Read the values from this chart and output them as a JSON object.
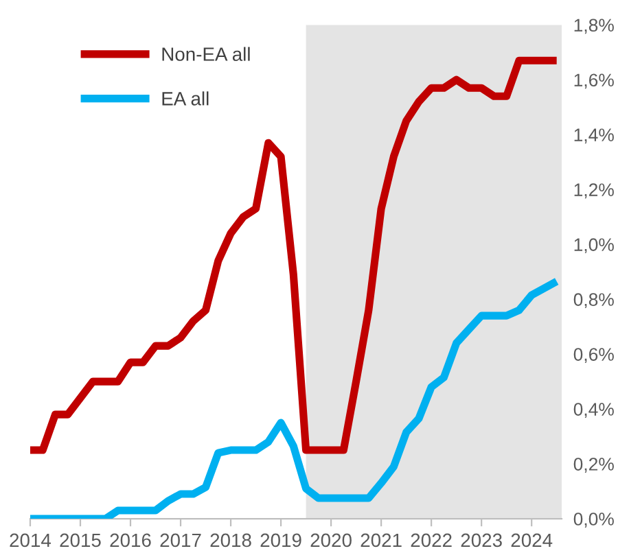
{
  "chart_data": {
    "type": "line",
    "x": [
      2014.0,
      2014.25,
      2014.5,
      2014.75,
      2015.0,
      2015.25,
      2015.5,
      2015.75,
      2016.0,
      2016.25,
      2016.5,
      2016.75,
      2017.0,
      2017.25,
      2017.5,
      2017.75,
      2018.0,
      2018.25,
      2018.5,
      2018.75,
      2019.0,
      2019.25,
      2019.5,
      2019.75,
      2020.0,
      2020.25,
      2020.5,
      2020.75,
      2021.0,
      2021.25,
      2021.5,
      2021.75,
      2022.0,
      2022.25,
      2022.5,
      2022.75,
      2023.0,
      2023.25,
      2023.5,
      2023.75,
      2024.0,
      2024.25,
      2024.5
    ],
    "series": [
      {
        "name": "Non-EA all",
        "color": "#c00000",
        "values": [
          0.25,
          0.25,
          0.38,
          0.38,
          0.44,
          0.5,
          0.5,
          0.5,
          0.57,
          0.57,
          0.63,
          0.63,
          0.66,
          0.72,
          0.76,
          0.94,
          1.04,
          1.1,
          1.13,
          1.37,
          1.32,
          0.89,
          0.25,
          0.25,
          0.25,
          0.25,
          0.5,
          0.76,
          1.13,
          1.32,
          1.45,
          1.52,
          1.57,
          1.57,
          1.6,
          1.57,
          1.57,
          1.54,
          1.54,
          1.67,
          1.67,
          1.67,
          1.67
        ]
      },
      {
        "name": "EA all",
        "color": "#00b0f0",
        "values": [
          0.0,
          0.0,
          0.0,
          0.0,
          0.0,
          0.0,
          0.0,
          0.03,
          0.03,
          0.03,
          0.03,
          0.065,
          0.09,
          0.09,
          0.115,
          0.24,
          0.25,
          0.25,
          0.25,
          0.28,
          0.35,
          0.265,
          0.11,
          0.075,
          0.075,
          0.075,
          0.075,
          0.075,
          0.13,
          0.19,
          0.315,
          0.365,
          0.48,
          0.515,
          0.64,
          0.69,
          0.74,
          0.74,
          0.74,
          0.76,
          0.815,
          0.84,
          0.865
        ]
      }
    ],
    "xlim": [
      2014,
      2024.6
    ],
    "xticks": [
      2014,
      2015,
      2016,
      2017,
      2018,
      2019,
      2020,
      2021,
      2022,
      2023,
      2024
    ],
    "ylim": [
      0,
      1.8
    ],
    "yticks": [
      {
        "value": 0,
        "label": "0,0%"
      },
      {
        "value": 0.2,
        "label": "0,2%"
      },
      {
        "value": 0.4,
        "label": "0,4%"
      },
      {
        "value": 0.6,
        "label": "0,6%"
      },
      {
        "value": 0.8,
        "label": "0,8%"
      },
      {
        "value": 1.0,
        "label": "1,0%"
      },
      {
        "value": 1.2,
        "label": "1,2%"
      },
      {
        "value": 1.4,
        "label": "1,4%"
      },
      {
        "value": 1.6,
        "label": "1,6%"
      },
      {
        "value": 1.8,
        "label": "1,8%"
      }
    ],
    "bands": [
      {
        "axis": "x",
        "from": 2019.5,
        "to": 2024.6,
        "color": "#e4e4e4"
      }
    ],
    "grid": false,
    "legend": "top left",
    "line_style": "solid",
    "marker": "none"
  }
}
